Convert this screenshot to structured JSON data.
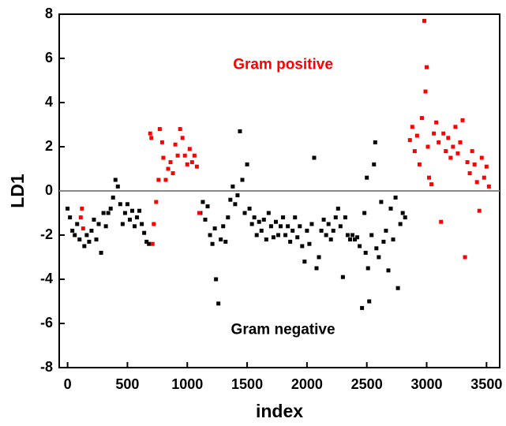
{
  "chart_data": {
    "type": "scatter",
    "x_label": "index",
    "y_label": "LD1",
    "xlim": [
      -70,
      3610
    ],
    "ylim": [
      -8,
      8
    ],
    "xticks": [
      0,
      500,
      1000,
      1500,
      2000,
      2500,
      3000,
      3500
    ],
    "yticks": [
      -8,
      -6,
      -4,
      -2,
      0,
      2,
      4,
      6,
      8
    ],
    "hline": 0,
    "hline_color": "#888888",
    "series": [
      {
        "name": "Gram negative",
        "color": "#000000",
        "label_at": [
          1800,
          -6.3
        ],
        "x": [
          0,
          20,
          40,
          60,
          80,
          100,
          140,
          160,
          180,
          200,
          220,
          240,
          260,
          280,
          300,
          320,
          340,
          360,
          380,
          400,
          420,
          440,
          460,
          480,
          500,
          520,
          540,
          560,
          580,
          600,
          620,
          640,
          660,
          680,
          1110,
          1130,
          1150,
          1170,
          1190,
          1210,
          1230,
          1240,
          1260,
          1280,
          1300,
          1320,
          1340,
          1360,
          1380,
          1400,
          1420,
          1440,
          1460,
          1480,
          1500,
          1520,
          1540,
          1560,
          1580,
          1600,
          1620,
          1640,
          1660,
          1680,
          1700,
          1720,
          1740,
          1760,
          1780,
          1800,
          1820,
          1840,
          1860,
          1880,
          1900,
          1920,
          1940,
          1960,
          1980,
          2000,
          2020,
          2040,
          2060,
          2080,
          2100,
          2120,
          2140,
          2160,
          2180,
          2200,
          2220,
          2240,
          2260,
          2280,
          2300,
          2320,
          2340,
          2360,
          2380,
          2400,
          2420,
          2440,
          2460,
          2480,
          2490,
          2500,
          2510,
          2520,
          2540,
          2560,
          2570,
          2580,
          2600,
          2620,
          2640,
          2660,
          2680,
          2700,
          2720,
          2740,
          2760,
          2780,
          2800,
          2820
        ],
        "values": [
          -0.8,
          -1.2,
          -1.8,
          -2.0,
          -1.5,
          -2.2,
          -2.5,
          -2.0,
          -2.3,
          -1.8,
          -1.3,
          -2.2,
          -1.5,
          -2.8,
          -1.0,
          -1.6,
          -1.0,
          -0.8,
          -0.3,
          0.5,
          0.2,
          -0.6,
          -1.5,
          -1.0,
          -0.6,
          -1.3,
          -0.9,
          -1.6,
          -1.2,
          -0.9,
          -1.5,
          -1.9,
          -2.3,
          -2.4,
          -1.0,
          -0.5,
          -1.3,
          -0.7,
          -2.0,
          -2.4,
          -1.7,
          -4.0,
          -5.1,
          -2.2,
          -1.6,
          -2.3,
          -1.2,
          -0.4,
          0.2,
          -0.6,
          -0.2,
          2.7,
          0.5,
          -1.0,
          1.2,
          -0.8,
          -1.5,
          -1.2,
          -2.0,
          -1.4,
          -1.8,
          -1.3,
          -2.2,
          -1.0,
          -1.6,
          -2.1,
          -1.4,
          -2.0,
          -1.6,
          -1.2,
          -2.0,
          -1.6,
          -2.3,
          -1.8,
          -1.2,
          -2.1,
          -1.6,
          -2.5,
          -3.2,
          -1.8,
          -2.4,
          -1.5,
          1.5,
          -3.5,
          -3.0,
          -1.8,
          -1.3,
          -2.0,
          -1.5,
          -2.2,
          -1.8,
          -1.2,
          -0.8,
          -1.6,
          -3.9,
          -1.2,
          -2.0,
          -2.2,
          -2.0,
          -2.2,
          -2.1,
          -2.5,
          -5.3,
          -1.0,
          -2.8,
          0.6,
          -3.5,
          -5.0,
          -2.0,
          1.2,
          2.2,
          -2.6,
          -3.0,
          -0.5,
          -2.3,
          -1.8,
          -3.6,
          -0.8,
          -2.2,
          -0.3,
          -4.4,
          -1.5,
          -1.0,
          -1.2
        ]
      },
      {
        "name": "Gram positive",
        "color": "#ff0000",
        "label_at": [
          1800,
          5.7
        ],
        "x": [
          110,
          120,
          130,
          690,
          700,
          710,
          720,
          740,
          760,
          770,
          790,
          800,
          820,
          840,
          860,
          880,
          900,
          920,
          940,
          960,
          980,
          1000,
          1020,
          1040,
          1060,
          1080,
          1100,
          2860,
          2880,
          2900,
          2920,
          2940,
          2960,
          2980,
          2990,
          3000,
          3010,
          3020,
          3040,
          3060,
          3080,
          3100,
          3120,
          3140,
          3160,
          3180,
          3200,
          3220,
          3240,
          3260,
          3280,
          3300,
          3320,
          3340,
          3360,
          3380,
          3400,
          3420,
          3440,
          3460,
          3480,
          3500,
          3520
        ],
        "values": [
          -1.2,
          -0.8,
          -1.7,
          2.6,
          2.4,
          -2.4,
          -1.5,
          -0.5,
          0.5,
          2.8,
          2.2,
          1.5,
          0.5,
          1.0,
          1.3,
          0.8,
          2.1,
          1.6,
          2.8,
          2.4,
          1.6,
          1.2,
          1.9,
          1.3,
          1.6,
          1.1,
          -1.0,
          2.3,
          2.9,
          1.8,
          2.5,
          1.2,
          3.3,
          7.7,
          4.5,
          5.6,
          2.0,
          0.6,
          0.3,
          2.6,
          3.1,
          2.2,
          -1.4,
          2.6,
          1.8,
          2.4,
          1.5,
          2.0,
          2.9,
          1.7,
          2.2,
          3.2,
          -3.0,
          1.3,
          0.8,
          1.8,
          1.2,
          0.4,
          -0.9,
          1.5,
          0.6,
          1.1,
          0.2
        ]
      }
    ]
  }
}
